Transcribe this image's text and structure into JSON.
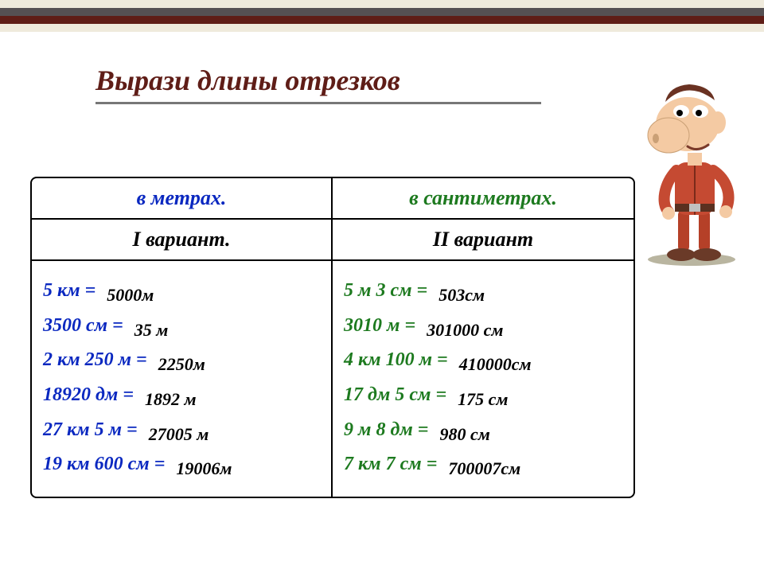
{
  "stripes": {
    "colors": [
      "#efeadc",
      "#555053",
      "#5f1d17",
      "#efeadc"
    ]
  },
  "title": {
    "text": "Вырази длины отрезков",
    "color": "#5f1d17"
  },
  "headers": {
    "col1": {
      "text": "в  метрах.",
      "color": "#0a28c0"
    },
    "col2": {
      "text": "в  сантиметрах.",
      "color": "#1d7a1f"
    }
  },
  "variants": {
    "col1": {
      "text": "I вариант.",
      "color": "#000000"
    },
    "col2": {
      "text": "II вариант",
      "color": "#000000"
    }
  },
  "left": {
    "q_color": "#0a28c0",
    "a_color": "#000000",
    "items": [
      {
        "q": "5 км =",
        "a": "5000м"
      },
      {
        "q": "3500 см =",
        "a": "35 м"
      },
      {
        "q": "2 км 250 м =",
        "a": "2250м"
      },
      {
        "q": "18920 дм =",
        "a": "1892 м"
      },
      {
        "q": "27 км 5 м =",
        "a": "27005 м"
      },
      {
        "q": "19 км 600 см =",
        "a": "19006м"
      }
    ]
  },
  "right": {
    "q_color": "#1d7a1f",
    "a_color": "#000000",
    "items": [
      {
        "q": "5 м 3 см =",
        "a": "503см"
      },
      {
        "q": "3010 м =",
        "a": "301000 см"
      },
      {
        "q": "4 км 100 м =",
        "a": "410000см"
      },
      {
        "q": "17 дм 5 см =",
        "a": "175 см"
      },
      {
        "q": "9 м 8 дм =",
        "a": "980 см"
      },
      {
        "q": "7 км 7 см =",
        "a": "700007см"
      }
    ]
  }
}
